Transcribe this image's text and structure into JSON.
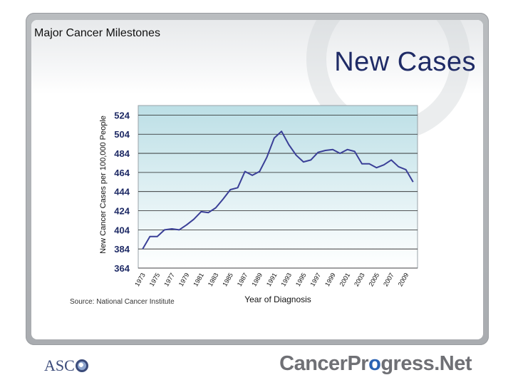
{
  "slide": {
    "header_label": "Major Cancer Milestones",
    "title": "New Cases",
    "source": "Source: National Cancer Institute"
  },
  "footer": {
    "left_logo_text": "ASC",
    "right_logo_part1": "CancerPr",
    "right_logo_o": "o",
    "right_logo_part2": "gress.Net"
  },
  "colors": {
    "line": "#3a3f97",
    "title": "#1f2b66",
    "plot_top": "#bcdfe6",
    "plot_bottom": "#ffffff",
    "gridline": "#222222"
  },
  "chart_data": {
    "type": "line",
    "title": "",
    "xlabel": "Year of Diagnosis",
    "ylabel": "New Cancer Cases per 100,000 People",
    "ylim": [
      364,
      534
    ],
    "yticks": [
      364,
      384,
      404,
      424,
      444,
      464,
      484,
      504,
      524
    ],
    "xticks": [
      "1973",
      "1975",
      "1977",
      "1979",
      "1981",
      "1983",
      "1985",
      "1987",
      "1989",
      "1991",
      "1993",
      "1995",
      "1997",
      "1999",
      "2001",
      "2003",
      "2005",
      "2007",
      "2009"
    ],
    "x": [
      1973,
      1974,
      1975,
      1976,
      1977,
      1978,
      1979,
      1980,
      1981,
      1982,
      1983,
      1984,
      1985,
      1986,
      1987,
      1988,
      1989,
      1990,
      1991,
      1992,
      1993,
      1994,
      1995,
      1996,
      1997,
      1998,
      1999,
      2000,
      2001,
      2002,
      2003,
      2004,
      2005,
      2006,
      2007,
      2008,
      2009,
      2010
    ],
    "values": [
      384,
      397,
      397,
      404,
      405,
      404,
      409,
      415,
      423,
      422,
      427,
      436,
      446,
      448,
      465,
      461,
      465,
      480,
      500,
      507,
      493,
      482,
      475,
      477,
      485,
      487,
      488,
      484,
      488,
      486,
      473,
      473,
      469,
      472,
      477,
      470,
      467,
      454
    ],
    "grid": "horizontal"
  }
}
